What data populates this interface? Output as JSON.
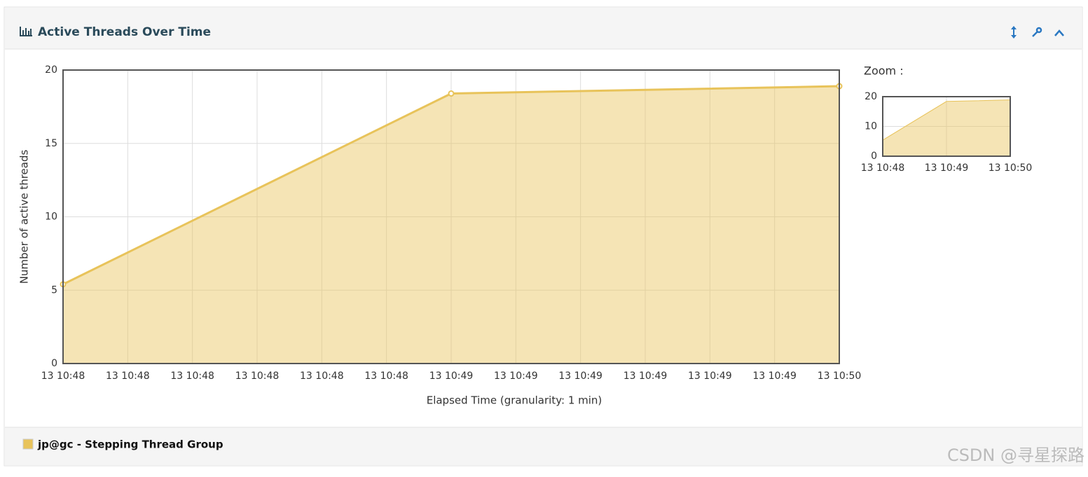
{
  "panel": {
    "title": "Active Threads Over Time"
  },
  "chart_data": [
    {
      "type": "area",
      "xlabel": "Elapsed Time (granularity: 1 min)",
      "ylabel": "Number of active threads",
      "x": [
        38880,
        38940,
        39000
      ],
      "series": [
        {
          "name": "jp@gc - Stepping Thread Group",
          "color": "#e8c35a",
          "values": [
            5.4,
            18.4,
            18.9
          ]
        }
      ],
      "xlim": [
        38880,
        39000
      ],
      "xticks": [
        {
          "value": 38880,
          "label": "13 10:48"
        },
        {
          "value": 38890,
          "label": "13 10:48"
        },
        {
          "value": 38900,
          "label": "13 10:48"
        },
        {
          "value": 38910,
          "label": "13 10:48"
        },
        {
          "value": 38920,
          "label": "13 10:48"
        },
        {
          "value": 38930,
          "label": "13 10:48"
        },
        {
          "value": 38940,
          "label": "13 10:49"
        },
        {
          "value": 38950,
          "label": "13 10:49"
        },
        {
          "value": 38960,
          "label": "13 10:49"
        },
        {
          "value": 38970,
          "label": "13 10:49"
        },
        {
          "value": 38980,
          "label": "13 10:49"
        },
        {
          "value": 38990,
          "label": "13 10:49"
        },
        {
          "value": 39000,
          "label": "13 10:50"
        }
      ],
      "ylim": [
        0,
        20
      ],
      "yticks": [
        0,
        5,
        10,
        15,
        20
      ],
      "grid": true,
      "markers": true,
      "legend": "bottom"
    },
    {
      "type": "area",
      "title": "Zoom :",
      "x": [
        38880,
        38940,
        39000
      ],
      "series": [
        {
          "color": "#e8c35a",
          "values": [
            5.4,
            18.4,
            18.9
          ]
        }
      ],
      "xlim": [
        38880,
        39000
      ],
      "xticks": [
        {
          "value": 38880,
          "label": "13 10:48"
        },
        {
          "value": 38940,
          "label": "13 10:49"
        },
        {
          "value": 39000,
          "label": "13 10:50"
        }
      ],
      "ylim": [
        0,
        20
      ],
      "yticks": [
        0,
        10,
        20
      ],
      "grid": true,
      "markers": false
    }
  ],
  "watermark": "CSDN @寻星探路"
}
